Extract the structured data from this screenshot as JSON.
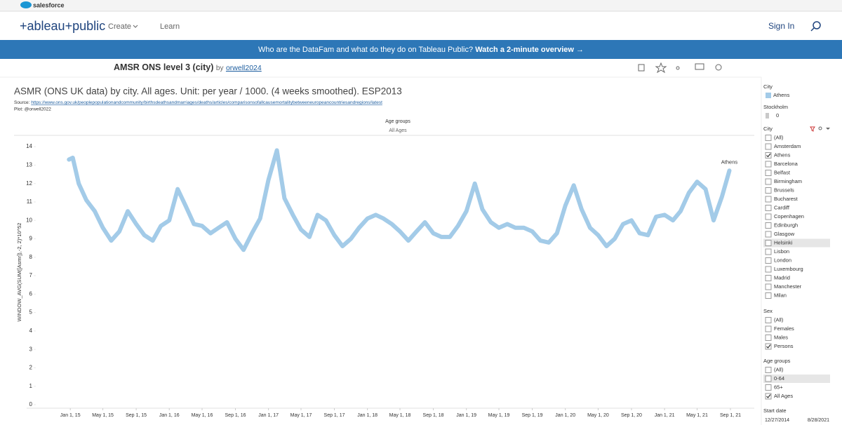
{
  "header": {
    "brand": "salesforce",
    "logo": "+ableau+public",
    "nav": [
      "Create",
      "Learn"
    ],
    "sign_in": "Sign In"
  },
  "banner": {
    "text": "Who are the DataFam and what do they do on Tableau Public?",
    "link": "Watch a 2-minute overview →"
  },
  "viz": {
    "title": "AMSR ONS level 3 (city)",
    "by": "by",
    "author": "orwell2024"
  },
  "chart_data": {
    "type": "line",
    "title": "ASMR (ONS UK data) by city. All ages. Unit: per year / 1000. (4 weeks smoothed). ESP2013",
    "source_label": "Source:",
    "source_url": "https://www.ons.gov.uk/peoplepopulationandcommunity/birthsdeathsandmarriages/deaths/articles/comparisonsofallcausemortalitybetweeneuropeancountriesandregions/latest",
    "credit": "Plot: @orwell2022",
    "panel_header": "Age groups",
    "panel_value": "All Ages",
    "y_label": "WINDOW_AVG(SUM([Asmr]),-2, 2)*10^52",
    "x": [
      "2014-12-27",
      "2015-01-10",
      "2015-02-01",
      "2015-03-01",
      "2015-04-01",
      "2015-05-01",
      "2015-06-01",
      "2015-07-01",
      "2015-08-01",
      "2015-09-01",
      "2015-10-01",
      "2015-11-01",
      "2015-12-01",
      "2016-01-01",
      "2016-02-01",
      "2016-03-01",
      "2016-04-01",
      "2016-05-01",
      "2016-06-01",
      "2016-07-01",
      "2016-08-01",
      "2016-09-01",
      "2016-10-01",
      "2016-11-01",
      "2016-12-01",
      "2017-01-01",
      "2017-02-01",
      "2017-03-01",
      "2017-04-01",
      "2017-05-01",
      "2017-06-01",
      "2017-07-01",
      "2017-08-01",
      "2017-09-01",
      "2017-10-01",
      "2017-11-01",
      "2017-12-01",
      "2018-01-01",
      "2018-02-01",
      "2018-03-01",
      "2018-04-01",
      "2018-05-01",
      "2018-06-01",
      "2018-07-01",
      "2018-08-01",
      "2018-09-01",
      "2018-10-01",
      "2018-11-01",
      "2018-12-01",
      "2019-01-01",
      "2019-02-01",
      "2019-03-01",
      "2019-04-01",
      "2019-05-01",
      "2019-06-01",
      "2019-07-01",
      "2019-08-01",
      "2019-09-01",
      "2019-10-01",
      "2019-11-01",
      "2019-12-01",
      "2020-01-01",
      "2020-02-01",
      "2020-03-01",
      "2020-04-01",
      "2020-05-01",
      "2020-06-01",
      "2020-07-01",
      "2020-08-01",
      "2020-09-01",
      "2020-10-01",
      "2020-11-01",
      "2020-12-01",
      "2021-01-01",
      "2021-02-01",
      "2021-03-01",
      "2021-04-01",
      "2021-05-01",
      "2021-06-01",
      "2021-07-01",
      "2021-08-01",
      "2021-08-28"
    ],
    "series": [
      {
        "name": "Athens",
        "color": "#a3cbe8",
        "values": [
          13.3,
          13.4,
          12.0,
          11.1,
          10.5,
          9.6,
          8.9,
          9.4,
          10.5,
          9.8,
          9.2,
          8.9,
          9.7,
          10.0,
          11.7,
          10.8,
          9.8,
          9.7,
          9.3,
          9.6,
          9.9,
          9.0,
          8.4,
          9.3,
          10.1,
          12.2,
          13.8,
          11.2,
          10.3,
          9.5,
          9.1,
          10.3,
          10.0,
          9.2,
          8.6,
          9.0,
          9.6,
          10.1,
          10.3,
          10.1,
          9.8,
          9.4,
          8.9,
          9.4,
          9.9,
          9.3,
          9.1,
          9.1,
          9.7,
          10.5,
          12.0,
          10.6,
          9.9,
          9.6,
          9.8,
          9.6,
          9.6,
          9.4,
          8.9,
          8.8,
          9.3,
          10.8,
          11.9,
          10.6,
          9.6,
          9.2,
          8.6,
          9.0,
          9.8,
          10.0,
          9.3,
          9.2,
          10.2,
          10.3,
          10.0,
          10.5,
          11.5,
          12.1,
          11.7,
          10.0,
          11.3,
          12.7
        ]
      }
    ],
    "xlim": [
      "2014-07-24",
      "2021-11-28"
    ],
    "xticks": [
      {
        "value": "2015-01-01",
        "label": "Jan 1, 15"
      },
      {
        "value": "2015-05-01",
        "label": "May 1, 15"
      },
      {
        "value": "2015-09-01",
        "label": "Sep 1, 15"
      },
      {
        "value": "2016-01-01",
        "label": "Jan 1, 16"
      },
      {
        "value": "2016-05-01",
        "label": "May 1, 16"
      },
      {
        "value": "2016-09-01",
        "label": "Sep 1, 16"
      },
      {
        "value": "2017-01-01",
        "label": "Jan 1, 17"
      },
      {
        "value": "2017-05-01",
        "label": "May 1, 17"
      },
      {
        "value": "2017-09-01",
        "label": "Sep 1, 17"
      },
      {
        "value": "2018-01-01",
        "label": "Jan 1, 18"
      },
      {
        "value": "2018-05-01",
        "label": "May 1, 18"
      },
      {
        "value": "2018-09-01",
        "label": "Sep 1, 18"
      },
      {
        "value": "2019-01-01",
        "label": "Jan 1, 19"
      },
      {
        "value": "2019-05-01",
        "label": "May 1, 19"
      },
      {
        "value": "2019-09-01",
        "label": "Sep 1, 19"
      },
      {
        "value": "2020-01-01",
        "label": "Jan 1, 20"
      },
      {
        "value": "2020-05-01",
        "label": "May 1, 20"
      },
      {
        "value": "2020-09-01",
        "label": "Sep 1, 20"
      },
      {
        "value": "2021-01-01",
        "label": "Jan 1, 21"
      },
      {
        "value": "2021-05-01",
        "label": "May 1, 21"
      },
      {
        "value": "2021-09-01",
        "label": "Sep 1, 21"
      }
    ],
    "ylim": [
      0,
      14.5
    ],
    "yticks": [
      0,
      1,
      2,
      3,
      4,
      5,
      6,
      7,
      8,
      9,
      10,
      11,
      12,
      13,
      14
    ],
    "grid": false
  },
  "filters": {
    "legends": [
      {
        "title": "City",
        "items": [
          "Athens"
        ],
        "color": "#a3cbe8"
      },
      {
        "title": "Stockholm",
        "items": [
          "0"
        ],
        "color": "#c9c9c9"
      }
    ],
    "lists": [
      {
        "title": "City",
        "items": [
          {
            "label": "(All)"
          },
          {
            "label": "Amsterdam"
          },
          {
            "label": "Athens",
            "checked": true
          },
          {
            "label": "Barcelona"
          },
          {
            "label": "Belfast"
          },
          {
            "label": "Birmingham"
          },
          {
            "label": "Brussels"
          },
          {
            "label": "Bucharest"
          },
          {
            "label": "Cardiff"
          },
          {
            "label": "Copenhagen"
          },
          {
            "label": "Edinburgh"
          },
          {
            "label": "Glasgow"
          },
          {
            "label": "Helsinki",
            "highlighted": true
          },
          {
            "label": "Lisbon"
          },
          {
            "label": "London"
          },
          {
            "label": "Luxembourg"
          },
          {
            "label": "Madrid"
          },
          {
            "label": "Manchester"
          },
          {
            "label": "Milan"
          }
        ]
      },
      {
        "title": "Sex",
        "items": [
          {
            "label": "(All)"
          },
          {
            "label": "Females"
          },
          {
            "label": "Males"
          },
          {
            "label": "Persons",
            "checked": true
          }
        ]
      },
      {
        "title": "Age groups",
        "items": [
          {
            "label": "(All)"
          },
          {
            "label": "0-64",
            "highlighted": true
          },
          {
            "label": "65+"
          },
          {
            "label": "All Ages",
            "checked": true
          }
        ]
      }
    ],
    "start_date": {
      "title": "Start date",
      "from": "12/27/2014",
      "to": "8/28/2021"
    }
  }
}
